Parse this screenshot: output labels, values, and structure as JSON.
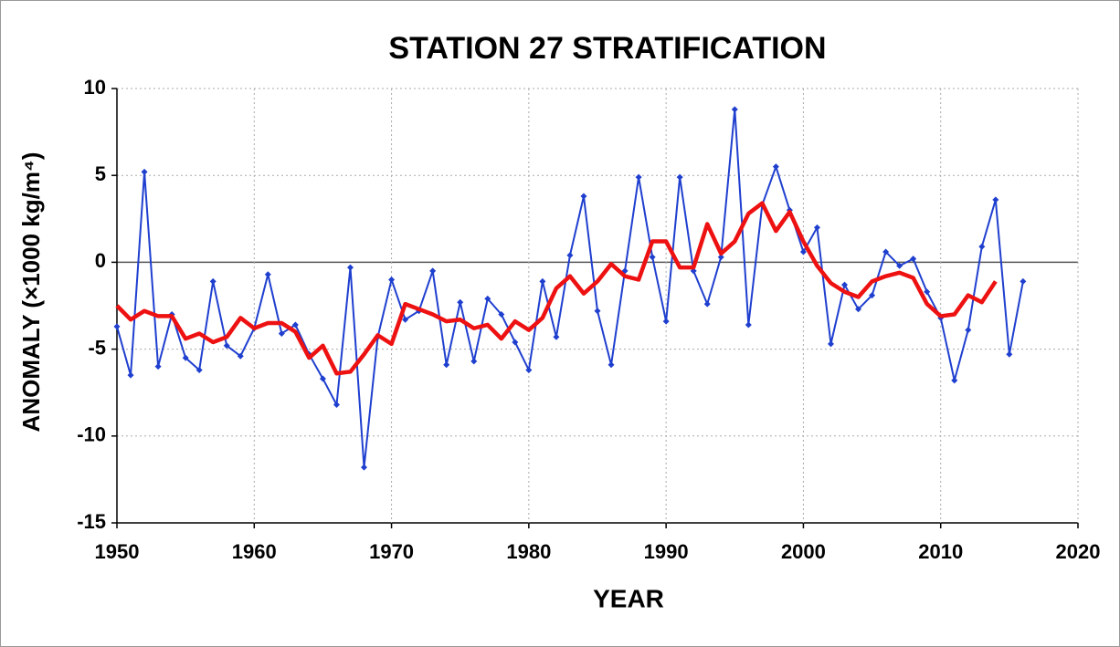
{
  "chart_data": {
    "type": "line",
    "title": "STATION 27 STRATIFICATION",
    "xlabel": "YEAR",
    "ylabel": "ANOMALY (×1000 kg/m⁴)",
    "x": [
      1950,
      1951,
      1952,
      1953,
      1954,
      1955,
      1956,
      1957,
      1958,
      1959,
      1960,
      1961,
      1962,
      1963,
      1964,
      1965,
      1966,
      1967,
      1968,
      1969,
      1970,
      1971,
      1972,
      1973,
      1974,
      1975,
      1976,
      1977,
      1978,
      1979,
      1980,
      1981,
      1982,
      1983,
      1984,
      1985,
      1986,
      1987,
      1988,
      1989,
      1990,
      1991,
      1992,
      1993,
      1994,
      1995,
      1996,
      1997,
      1998,
      1999,
      2000,
      2001,
      2002,
      2003,
      2004,
      2005,
      2006,
      2007,
      2008,
      2009,
      2010,
      2011,
      2012,
      2013,
      2014,
      2015,
      2016
    ],
    "series": [
      {
        "color": "#1f3fcf",
        "values": [
          -3.7,
          -6.5,
          5.2,
          -6.0,
          -3.0,
          -5.5,
          -6.2,
          -1.1,
          -4.8,
          -5.4,
          -3.8,
          -0.7,
          -4.1,
          -3.6,
          -5.3,
          -6.7,
          -8.2,
          -0.3,
          -11.8,
          -4.3,
          -1.0,
          -3.3,
          -2.8,
          -0.5,
          -5.9,
          -2.3,
          -5.7,
          -2.1,
          -3.0,
          -4.6,
          -6.2,
          -1.1,
          -4.3,
          0.4,
          3.8,
          -2.8,
          -5.9,
          -0.5,
          4.9,
          0.3,
          -3.4,
          4.9,
          -0.5,
          -2.4,
          0.3,
          8.8,
          -3.6,
          3.3,
          5.5,
          3.0,
          0.6,
          2.0,
          -4.7,
          -1.3,
          -2.7,
          -1.9,
          0.6,
          -0.2,
          0.2,
          -1.7,
          -3.2,
          -6.8,
          -3.9,
          0.9,
          3.6,
          -5.3,
          -1.1
        ]
      },
      {
        "color": "#ee1111",
        "values": [
          -2.5,
          -3.3,
          -2.8,
          -3.1,
          -3.1,
          -4.4,
          -4.1,
          -4.6,
          -4.3,
          -3.2,
          -3.8,
          -3.5,
          -3.5,
          -4.0,
          -5.5,
          -4.8,
          -6.4,
          -6.3,
          -5.3,
          -4.2,
          -4.7,
          -2.4,
          -2.7,
          -3.0,
          -3.4,
          -3.3,
          -3.8,
          -3.6,
          -4.4,
          -3.4,
          -3.9,
          -3.2,
          -1.5,
          -0.8,
          -1.8,
          -1.1,
          -0.1,
          -0.8,
          -1.0,
          1.2,
          1.2,
          -0.3,
          -0.3,
          2.2,
          0.5,
          1.2,
          2.8,
          3.4,
          1.8,
          2.9,
          1.2,
          -0.2,
          -1.2,
          -1.7,
          -2.0,
          -1.1,
          -0.8,
          -0.6,
          -0.9,
          -2.4,
          -3.1,
          -3.0,
          -1.9,
          -2.3,
          -1.1,
          null,
          null
        ]
      }
    ],
    "xlim": [
      1950,
      2020
    ],
    "xticks": [
      1950,
      1960,
      1970,
      1980,
      1990,
      2000,
      2010,
      2020
    ],
    "ylim": [
      -15,
      10
    ],
    "yticks": [
      -15,
      -10,
      -5,
      0,
      5,
      10
    ],
    "grid": true
  }
}
